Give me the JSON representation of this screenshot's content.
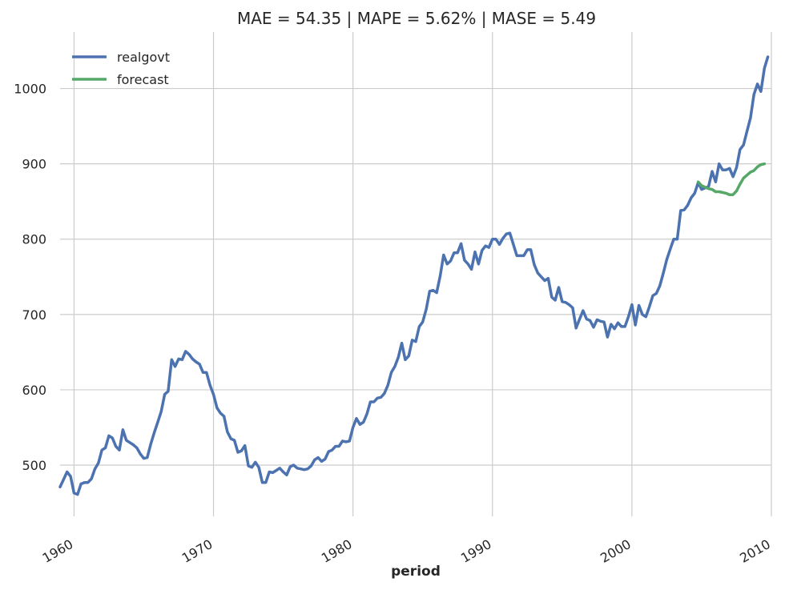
{
  "chart_data": {
    "type": "line",
    "title": "MAE = 54.35 | MAPE = 5.62% | MASE = 5.49",
    "xlabel": "period",
    "ylabel": "",
    "xlim": [
      1959.0,
      2010.0
    ],
    "ylim": [
      432,
      1075
    ],
    "x_ticks": [
      1960,
      1970,
      1980,
      1990,
      2000,
      2010
    ],
    "x_tick_labels": [
      "1960",
      "1970",
      "1980",
      "1990",
      "2000",
      "2010"
    ],
    "y_ticks": [
      500,
      600,
      700,
      800,
      900,
      1000
    ],
    "y_tick_labels": [
      "500",
      "600",
      "700",
      "800",
      "900",
      "1000"
    ],
    "grid": true,
    "legend_position": "top-left",
    "colors": {
      "realgovt": "#4c72b0",
      "forecast": "#55a868"
    },
    "series": [
      {
        "name": "realgovt",
        "x_start": 1959.0,
        "x_step": 0.25,
        "values": [
          471,
          481,
          491,
          485,
          463,
          461,
          475,
          477,
          477,
          482,
          495,
          503,
          520,
          523,
          539,
          536,
          525,
          520,
          547,
          533,
          530,
          527,
          523,
          515,
          509,
          510,
          528,
          543,
          557,
          571,
          594,
          598,
          640,
          631,
          641,
          640,
          651,
          647,
          641,
          637,
          634,
          623,
          623,
          606,
          594,
          576,
          569,
          565,
          544,
          535,
          533,
          517,
          519,
          526,
          499,
          497,
          504,
          497,
          477,
          477,
          491,
          490,
          493,
          496,
          491,
          487,
          498,
          500,
          496,
          495,
          494,
          495,
          499,
          507,
          510,
          505,
          508,
          518,
          520,
          525,
          525,
          532,
          531,
          532,
          550,
          562,
          554,
          557,
          568,
          584,
          584,
          589,
          590,
          595,
          606,
          623,
          631,
          643,
          662,
          640,
          645,
          666,
          664,
          684,
          690,
          707,
          731,
          732,
          729,
          751,
          779,
          767,
          771,
          782,
          782,
          794,
          772,
          767,
          760,
          783,
          767,
          785,
          791,
          789,
          800,
          800,
          793,
          801,
          807,
          808,
          793,
          778,
          778,
          778,
          786,
          786,
          766,
          755,
          750,
          745,
          748,
          723,
          719,
          736,
          717,
          716,
          713,
          709,
          682,
          694,
          705,
          694,
          692,
          683,
          693,
          691,
          690,
          670,
          687,
          681,
          689,
          684,
          684,
          697,
          713,
          686,
          712,
          700,
          697,
          710,
          725,
          728,
          738,
          755,
          773,
          787,
          800,
          800,
          838,
          839,
          845,
          855,
          861,
          875,
          866,
          868,
          870,
          890,
          876,
          900,
          892,
          892,
          894,
          883,
          895,
          919,
          925,
          943,
          961,
          992,
          1006,
          996,
          1027,
          1042
        ]
      },
      {
        "name": "forecast",
        "x_start": 2004.75,
        "x_step": 0.25,
        "values": [
          876,
          871,
          869,
          867,
          866,
          863,
          863,
          862,
          861,
          859,
          859,
          864,
          873,
          881,
          885,
          889,
          891,
          896,
          899,
          900
        ]
      }
    ]
  }
}
